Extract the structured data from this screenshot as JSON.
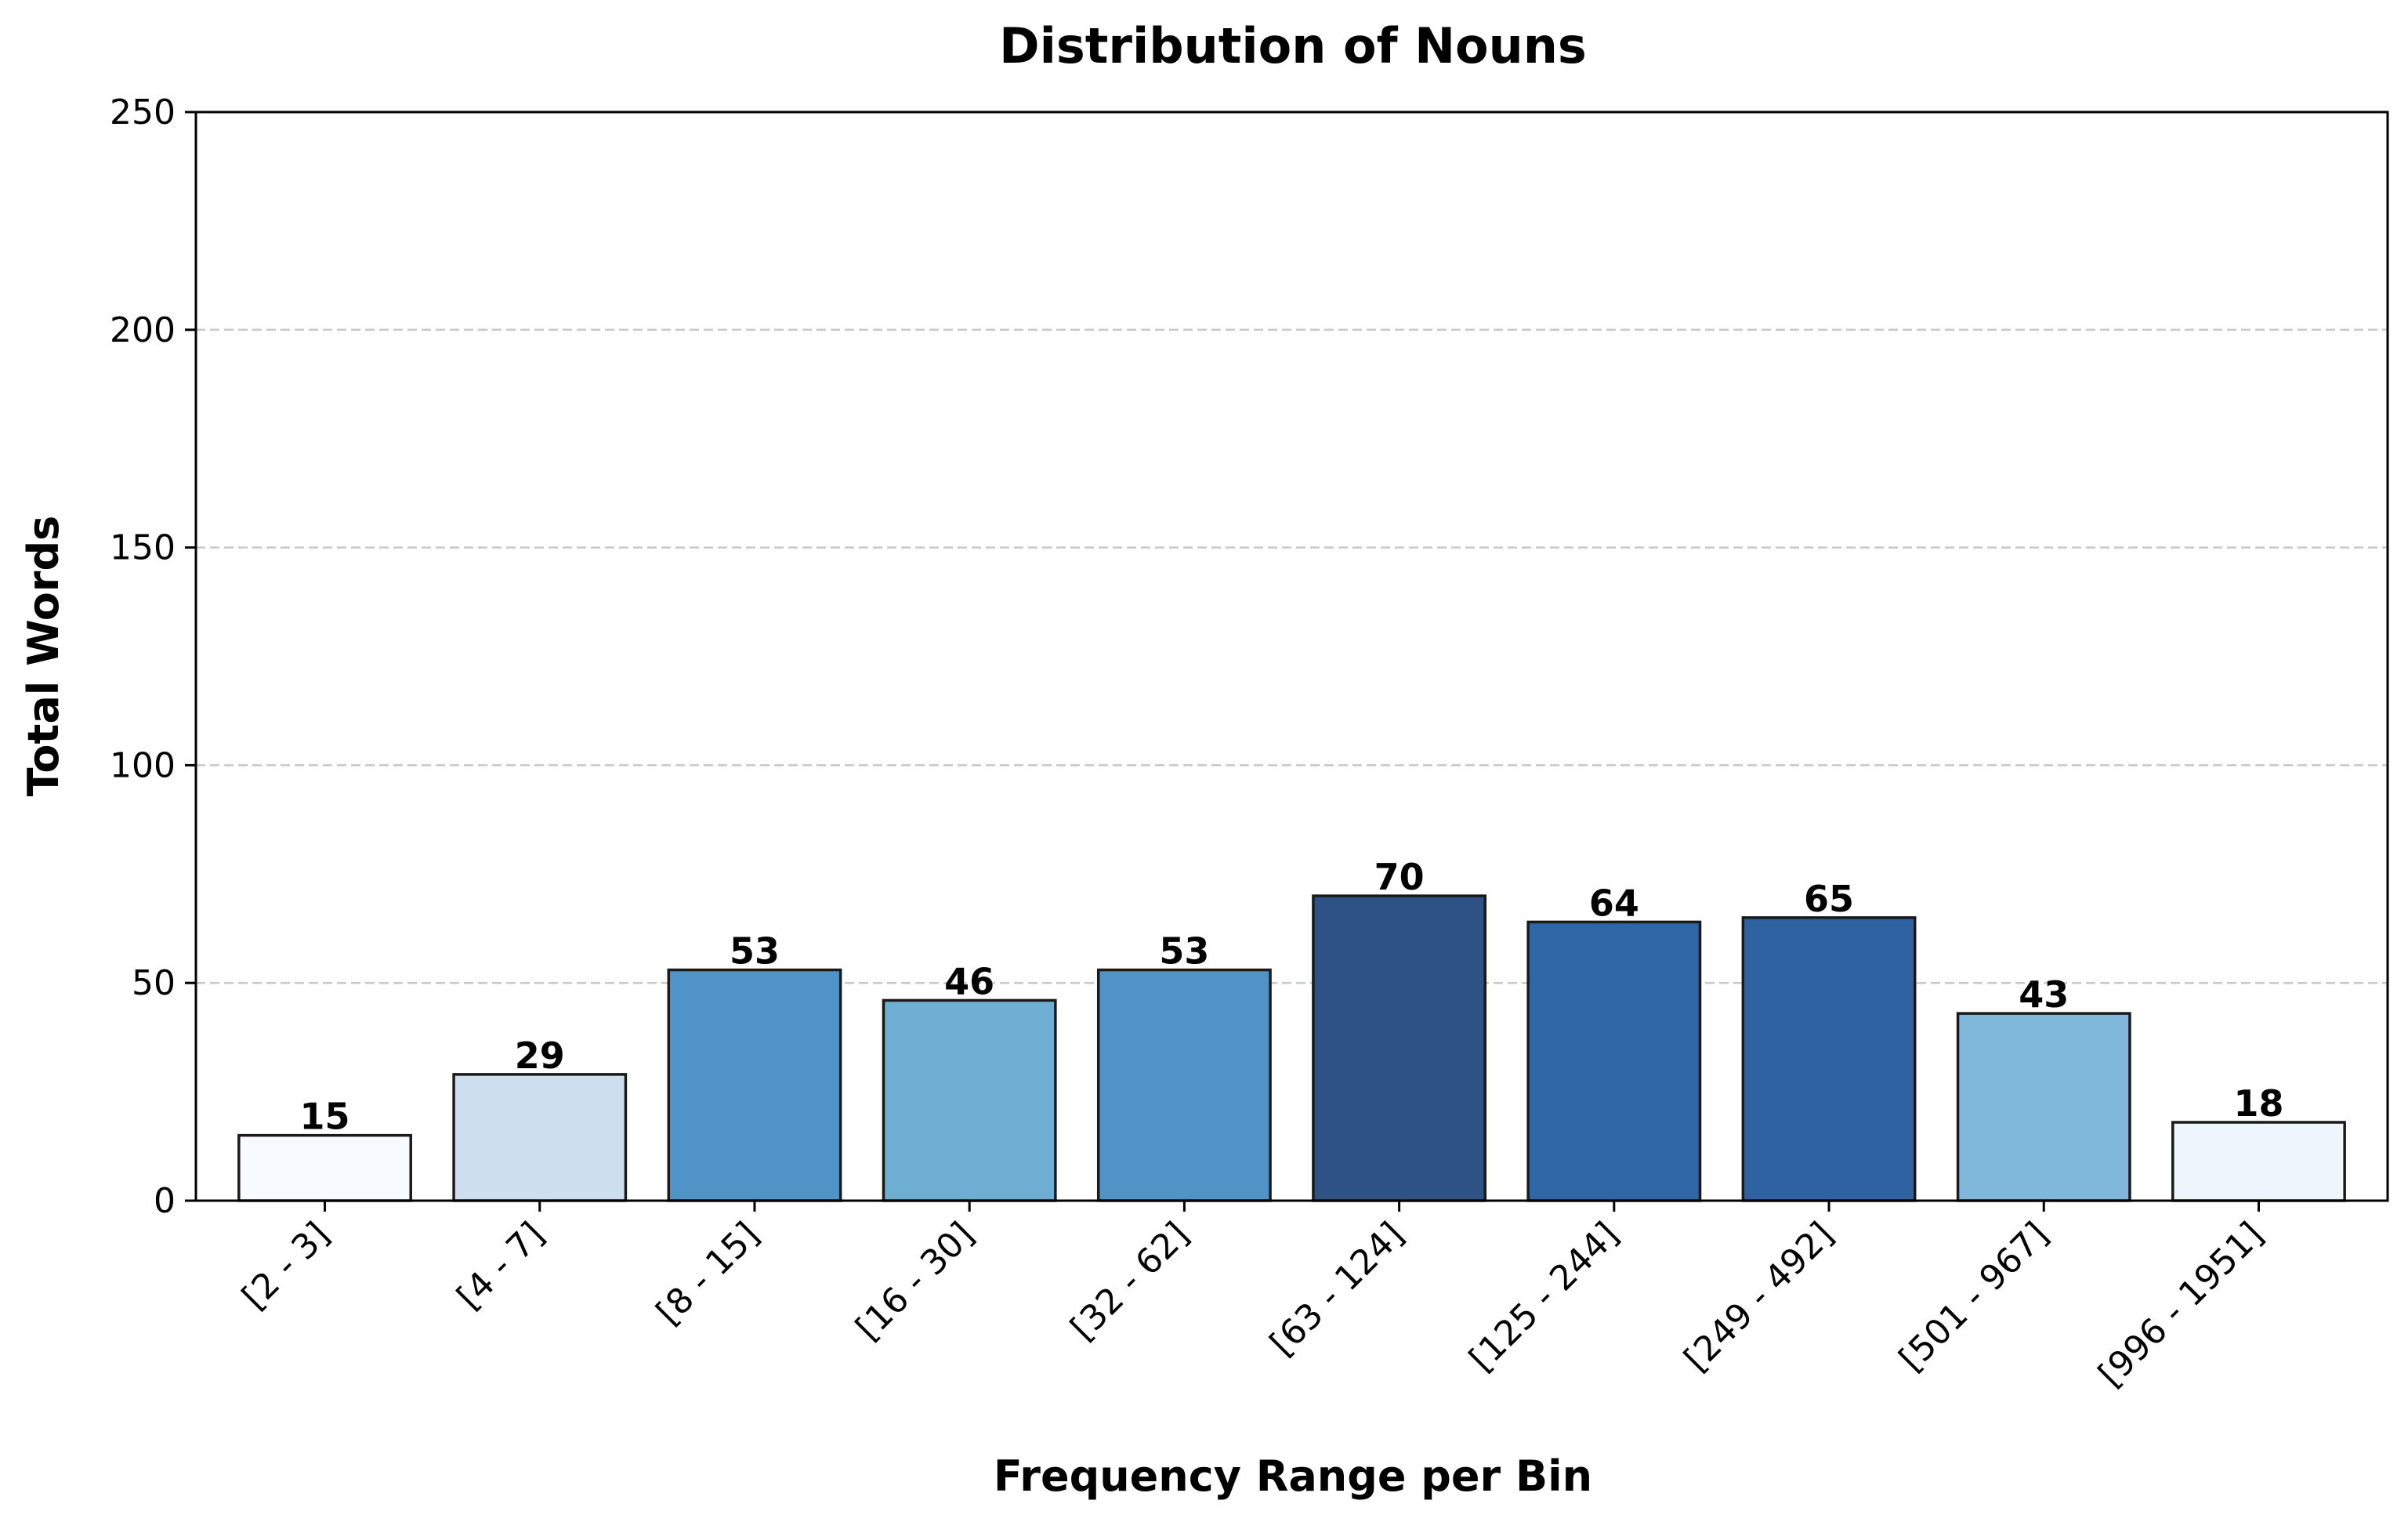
{
  "chart_data": {
    "type": "bar",
    "title": "Distribution of Nouns",
    "xlabel": "Frequency Range per Bin",
    "ylabel": "Total Words",
    "categories": [
      "[2 - 3]",
      "[4 - 7]",
      "[8 - 15]",
      "[16 - 30]",
      "[32 - 62]",
      "[63 - 124]",
      "[125 - 244]",
      "[249 - 492]",
      "[501 - 967]",
      "[996 - 1951]"
    ],
    "values": [
      15,
      29,
      53,
      46,
      53,
      70,
      64,
      65,
      43,
      18
    ],
    "colors": [
      "#f7fbff",
      "#cddfef",
      "#5094c7",
      "#6faed3",
      "#5094c7",
      "#2f5284",
      "#2e67a3",
      "#2e62a0",
      "#7fb8da",
      "#eef5fc"
    ],
    "ylim": [
      0,
      250
    ],
    "yticks": [
      0,
      50,
      100,
      150,
      200,
      250
    ],
    "grid": true,
    "grid_axis": "y",
    "legend": false
  }
}
